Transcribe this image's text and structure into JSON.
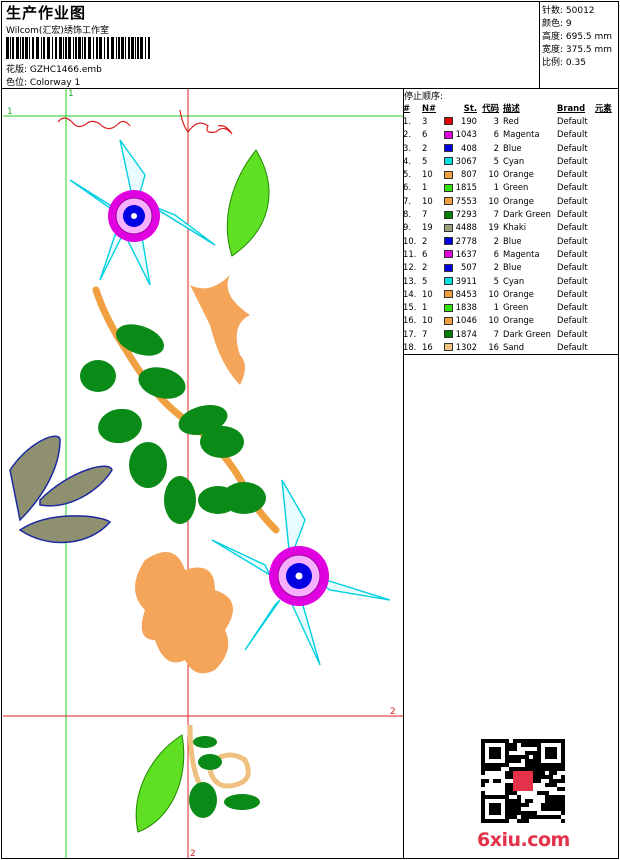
{
  "header": {
    "title": "生产作业图",
    "company": "Wilcom(汇宏)绣饰工作室",
    "design_line": "花版:  GZHC1466.emb",
    "colorway_line": "色位:  Colorway 1"
  },
  "stats": {
    "stitches": "针数: 50012",
    "colors": "颜色: 9",
    "height": "高度: 695.5 mm",
    "width": "宽度: 375.5 mm",
    "scale": "比例: 0.35"
  },
  "stop_sequence": {
    "title": "停止顺序:",
    "headers": [
      "#",
      "N#",
      "St.",
      "代码",
      "描述",
      "Brand",
      "元素"
    ],
    "rows": [
      {
        "idx": "1.",
        "n": "3",
        "st": "190",
        "code": "3",
        "desc": "Red",
        "brand": "Default",
        "color": "#e00000"
      },
      {
        "idx": "2.",
        "n": "6",
        "st": "1043",
        "code": "6",
        "desc": "Magenta",
        "brand": "Default",
        "color": "#e000e0"
      },
      {
        "idx": "3.",
        "n": "2",
        "st": "408",
        "code": "2",
        "desc": "Blue",
        "brand": "Default",
        "color": "#0000e0"
      },
      {
        "idx": "4.",
        "n": "5",
        "st": "3067",
        "code": "5",
        "desc": "Cyan",
        "brand": "Default",
        "color": "#00e0e0"
      },
      {
        "idx": "5.",
        "n": "10",
        "st": "807",
        "code": "10",
        "desc": "Orange",
        "brand": "Default",
        "color": "#f0a040"
      },
      {
        "idx": "6.",
        "n": "1",
        "st": "1815",
        "code": "1",
        "desc": "Green",
        "brand": "Default",
        "color": "#30e000"
      },
      {
        "idx": "7.",
        "n": "10",
        "st": "7553",
        "code": "10",
        "desc": "Orange",
        "brand": "Default",
        "color": "#f0a040"
      },
      {
        "idx": "8.",
        "n": "7",
        "st": "7293",
        "code": "7",
        "desc": "Dark Green",
        "brand": "Default",
        "color": "#008000"
      },
      {
        "idx": "9.",
        "n": "19",
        "st": "4488",
        "code": "19",
        "desc": "Khaki",
        "brand": "Default",
        "color": "#a0a080"
      },
      {
        "idx": "10.",
        "n": "2",
        "st": "2778",
        "code": "2",
        "desc": "Blue",
        "brand": "Default",
        "color": "#0000e0"
      },
      {
        "idx": "11.",
        "n": "6",
        "st": "1637",
        "code": "6",
        "desc": "Magenta",
        "brand": "Default",
        "color": "#e000e0"
      },
      {
        "idx": "12.",
        "n": "2",
        "st": "507",
        "code": "2",
        "desc": "Blue",
        "brand": "Default",
        "color": "#0000e0"
      },
      {
        "idx": "13.",
        "n": "5",
        "st": "3911",
        "code": "5",
        "desc": "Cyan",
        "brand": "Default",
        "color": "#00e0e0"
      },
      {
        "idx": "14.",
        "n": "10",
        "st": "8453",
        "code": "10",
        "desc": "Orange",
        "brand": "Default",
        "color": "#f0a040"
      },
      {
        "idx": "15.",
        "n": "1",
        "st": "1838",
        "code": "1",
        "desc": "Green",
        "brand": "Default",
        "color": "#30e000"
      },
      {
        "idx": "16.",
        "n": "10",
        "st": "1046",
        "code": "10",
        "desc": "Orange",
        "brand": "Default",
        "color": "#f0a040"
      },
      {
        "idx": "17.",
        "n": "7",
        "st": "1874",
        "code": "7",
        "desc": "Dark Green",
        "brand": "Default",
        "color": "#008000"
      },
      {
        "idx": "18.",
        "n": "16",
        "st": "1302",
        "code": "16",
        "desc": "Sand",
        "brand": "Default",
        "color": "#f0c080"
      }
    ]
  },
  "guides": {
    "marker_1": "1",
    "marker_2": "2"
  },
  "watermark": "6xiu.com"
}
